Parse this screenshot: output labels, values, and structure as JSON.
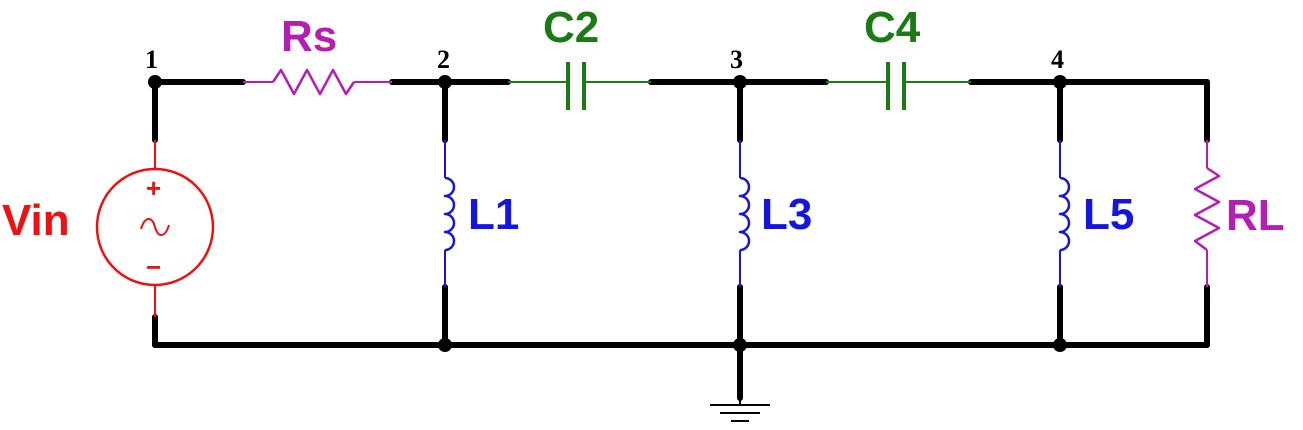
{
  "colors": {
    "wire": "#000000",
    "source": "#ee1111",
    "resistor": "#b31fb3",
    "capacitor": "#1c7a14",
    "inductor": "#1515e0"
  },
  "nodes": {
    "n1": "1",
    "n2": "2",
    "n3": "3",
    "n4": "4"
  },
  "components": {
    "source": {
      "label": "Vin",
      "plus": "+",
      "minus": "−",
      "symbol": "~"
    },
    "rs": {
      "label": "Rs"
    },
    "c2": {
      "label": "C2"
    },
    "c4": {
      "label": "C4"
    },
    "l1": {
      "label": "L1"
    },
    "l3": {
      "label": "L3"
    },
    "l5": {
      "label": "L5"
    },
    "rl": {
      "label": "RL"
    }
  }
}
